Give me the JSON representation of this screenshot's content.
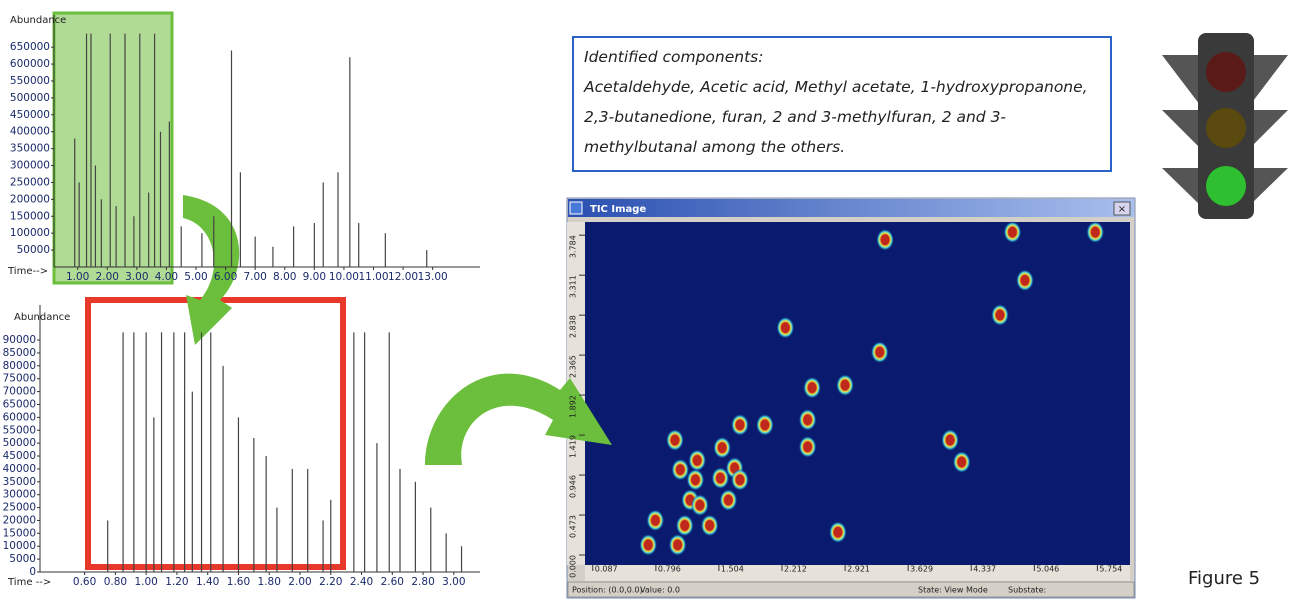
{
  "chart_data": [
    {
      "type": "stem",
      "y_label": "Abundance",
      "x_label": "Time-->",
      "color": "#444444",
      "xlim": [
        0.2,
        14.6
      ],
      "xticks": [
        {
          "value": 1,
          "label": "1.00"
        },
        {
          "value": 2,
          "label": "2.00"
        },
        {
          "value": 3,
          "label": "3.00"
        },
        {
          "value": 4,
          "label": "4.00"
        },
        {
          "value": 5,
          "label": "5.00"
        },
        {
          "value": 6,
          "label": "6.00"
        },
        {
          "value": 7,
          "label": "7.00"
        },
        {
          "value": 8,
          "label": "8.00"
        },
        {
          "value": 9,
          "label": "9.00"
        },
        {
          "value": 10,
          "label": "10.00"
        },
        {
          "value": 11,
          "label": "11.00"
        },
        {
          "value": 12,
          "label": "12.00"
        },
        {
          "value": 13,
          "label": "13.00"
        }
      ],
      "ylim": [
        0,
        745000
      ],
      "yticks": [
        50000,
        100000,
        150000,
        200000,
        250000,
        300000,
        350000,
        400000,
        450000,
        500000,
        550000,
        600000,
        650000
      ],
      "x": [
        0.9,
        1.05,
        1.3,
        1.45,
        1.6,
        1.8,
        2.1,
        2.3,
        2.6,
        2.9,
        3.1,
        3.4,
        3.6,
        3.8,
        4.1,
        4.5,
        5.2,
        5.6,
        6.2,
        6.5,
        7.0,
        7.6,
        8.3,
        9.0,
        9.3,
        9.8,
        10.2,
        10.5,
        11.4,
        12.8
      ],
      "values": [
        380000,
        250000,
        690000,
        690000,
        300000,
        200000,
        690000,
        180000,
        690000,
        150000,
        690000,
        220000,
        690000,
        400000,
        430000,
        120000,
        100000,
        150000,
        640000,
        280000,
        90000,
        60000,
        120000,
        130000,
        250000,
        280000,
        620000,
        130000,
        100000,
        50000
      ]
    },
    {
      "type": "stem",
      "y_label": "Abundance",
      "x_label": "Time -->",
      "color": "#444444",
      "xlim": [
        0.31,
        3.17
      ],
      "xticks": [
        {
          "value": 0.6,
          "label": "0.60"
        },
        {
          "value": 0.8,
          "label": "0.80"
        },
        {
          "value": 1,
          "label": "1.00"
        },
        {
          "value": 1.2,
          "label": "1.20"
        },
        {
          "value": 1.4,
          "label": "1.40"
        },
        {
          "value": 1.6,
          "label": "1.60"
        },
        {
          "value": 1.8,
          "label": "1.80"
        },
        {
          "value": 2,
          "label": "2.00"
        },
        {
          "value": 2.2,
          "label": "2.20"
        },
        {
          "value": 2.4,
          "label": "2.40"
        },
        {
          "value": 2.6,
          "label": "2.60"
        },
        {
          "value": 2.8,
          "label": "2.80"
        },
        {
          "value": 3,
          "label": "3.00"
        }
      ],
      "ylim": [
        0,
        103600
      ],
      "yticks": [
        0,
        5000,
        10000,
        15000,
        20000,
        25000,
        30000,
        35000,
        40000,
        45000,
        50000,
        55000,
        60000,
        65000,
        70000,
        75000,
        80000,
        85000,
        90000
      ],
      "x": [
        0.75,
        0.85,
        0.92,
        1.0,
        1.05,
        1.1,
        1.18,
        1.25,
        1.3,
        1.36,
        1.42,
        1.5,
        1.6,
        1.7,
        1.78,
        1.85,
        1.95,
        2.05,
        2.15,
        2.2,
        2.35,
        2.42,
        2.5,
        2.58,
        2.65,
        2.75,
        2.85,
        2.95,
        3.05
      ],
      "values": [
        20000,
        93000,
        93000,
        93000,
        60000,
        93000,
        93000,
        93000,
        70000,
        93000,
        93000,
        80000,
        60000,
        52000,
        45000,
        25000,
        40000,
        40000,
        20000,
        28000,
        93000,
        93000,
        50000,
        93000,
        40000,
        35000,
        25000,
        15000,
        10000
      ]
    },
    {
      "type": "scatter",
      "title": "TIC Image",
      "color": "#c0281c",
      "xlim": [
        0,
        6.12
      ],
      "xticks": [
        0.087,
        0.796,
        1.504,
        2.212,
        2.921,
        3.629,
        4.337,
        5.046,
        5.754
      ],
      "ylim": [
        -0.118,
        3.94
      ],
      "yticks": [
        {
          "value": 0,
          "label": "0.000"
        },
        0.473,
        0.946,
        1.419,
        1.892,
        2.365,
        2.838,
        3.311,
        3.784
      ],
      "x": [
        3.37,
        5.73,
        4.8,
        4.94,
        4.66,
        2.25,
        3.31,
        2.92,
        2.55,
        1.01,
        1.07,
        1.26,
        1.24,
        1.18,
        1.29,
        1.12,
        1.4,
        0.71,
        2.02,
        1.74,
        2.5,
        2.5,
        4.1,
        4.23,
        1.54,
        1.68,
        1.52,
        1.74,
        2.84,
        1.04,
        0.79,
        1.61
      ],
      "values": [
        3.73,
        3.82,
        3.82,
        3.25,
        2.84,
        2.69,
        2.4,
        2.01,
        1.98,
        1.36,
        1.01,
        1.12,
        0.89,
        0.65,
        0.59,
        0.35,
        0.35,
        0.12,
        1.54,
        1.54,
        1.6,
        1.28,
        1.36,
        1.1,
        1.27,
        1.03,
        0.91,
        0.89,
        0.27,
        0.12,
        0.41,
        0.65
      ]
    }
  ],
  "components": {
    "heading": "Identified components:",
    "text": "Acetaldehyde, Acetic acid, Methyl acetate, 1-hydroxypropanone, 2,3-butanedione, furan, 2 and 3-methylfuran, 2 and 3-methylbutanal among the others."
  },
  "status_bar": [
    "Position: (0.0,0.0)",
    "Value: 0.0",
    "State: View Mode",
    "Substate:"
  ],
  "caption": "Figure 5"
}
